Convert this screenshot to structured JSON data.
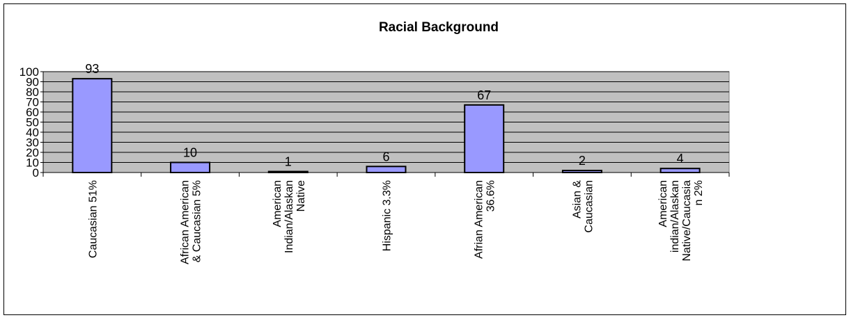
{
  "chart_data": {
    "type": "bar",
    "title": "Racial Background",
    "xlabel": "",
    "ylabel": "",
    "categories": [
      "Caucasian 51%",
      "African American & Caucasian 5%",
      "American Indian/Alaskan Native",
      "Hispanic 3.3%",
      "Afrian American 36.6%",
      "Asian & Caucasian",
      "American indian/Alaskan Native/Caucasian 2%"
    ],
    "category_lines": [
      [
        "Caucasian 51%"
      ],
      [
        "African American",
        "& Caucasian 5%"
      ],
      [
        "American",
        "Indian/Alaskan",
        "Native"
      ],
      [
        "Hispanic 3.3%"
      ],
      [
        "Afrian American",
        "36.6%"
      ],
      [
        "Asian &",
        "Caucasian"
      ],
      [
        "American",
        "indian/Alaskan",
        "Native/Caucasia",
        "n 2%"
      ]
    ],
    "values": [
      93,
      10,
      1,
      6,
      67,
      2,
      4
    ],
    "data_labels": [
      "93",
      "10",
      "1",
      "6",
      "67",
      "2",
      "4"
    ],
    "ylim": [
      0,
      100
    ],
    "yticks": [
      0,
      10,
      20,
      30,
      40,
      50,
      60,
      70,
      80,
      90,
      100
    ],
    "ytick_labels": [
      "0",
      "10",
      "20",
      "30",
      "40",
      "50",
      "60",
      "70",
      "80",
      "90",
      "100"
    ],
    "grid": true,
    "legend": "none",
    "colors": {
      "bar_fill": "#9999ff",
      "bar_stroke": "#000000",
      "plot_background": "#c0c0c0",
      "gridline": "#000000"
    }
  }
}
